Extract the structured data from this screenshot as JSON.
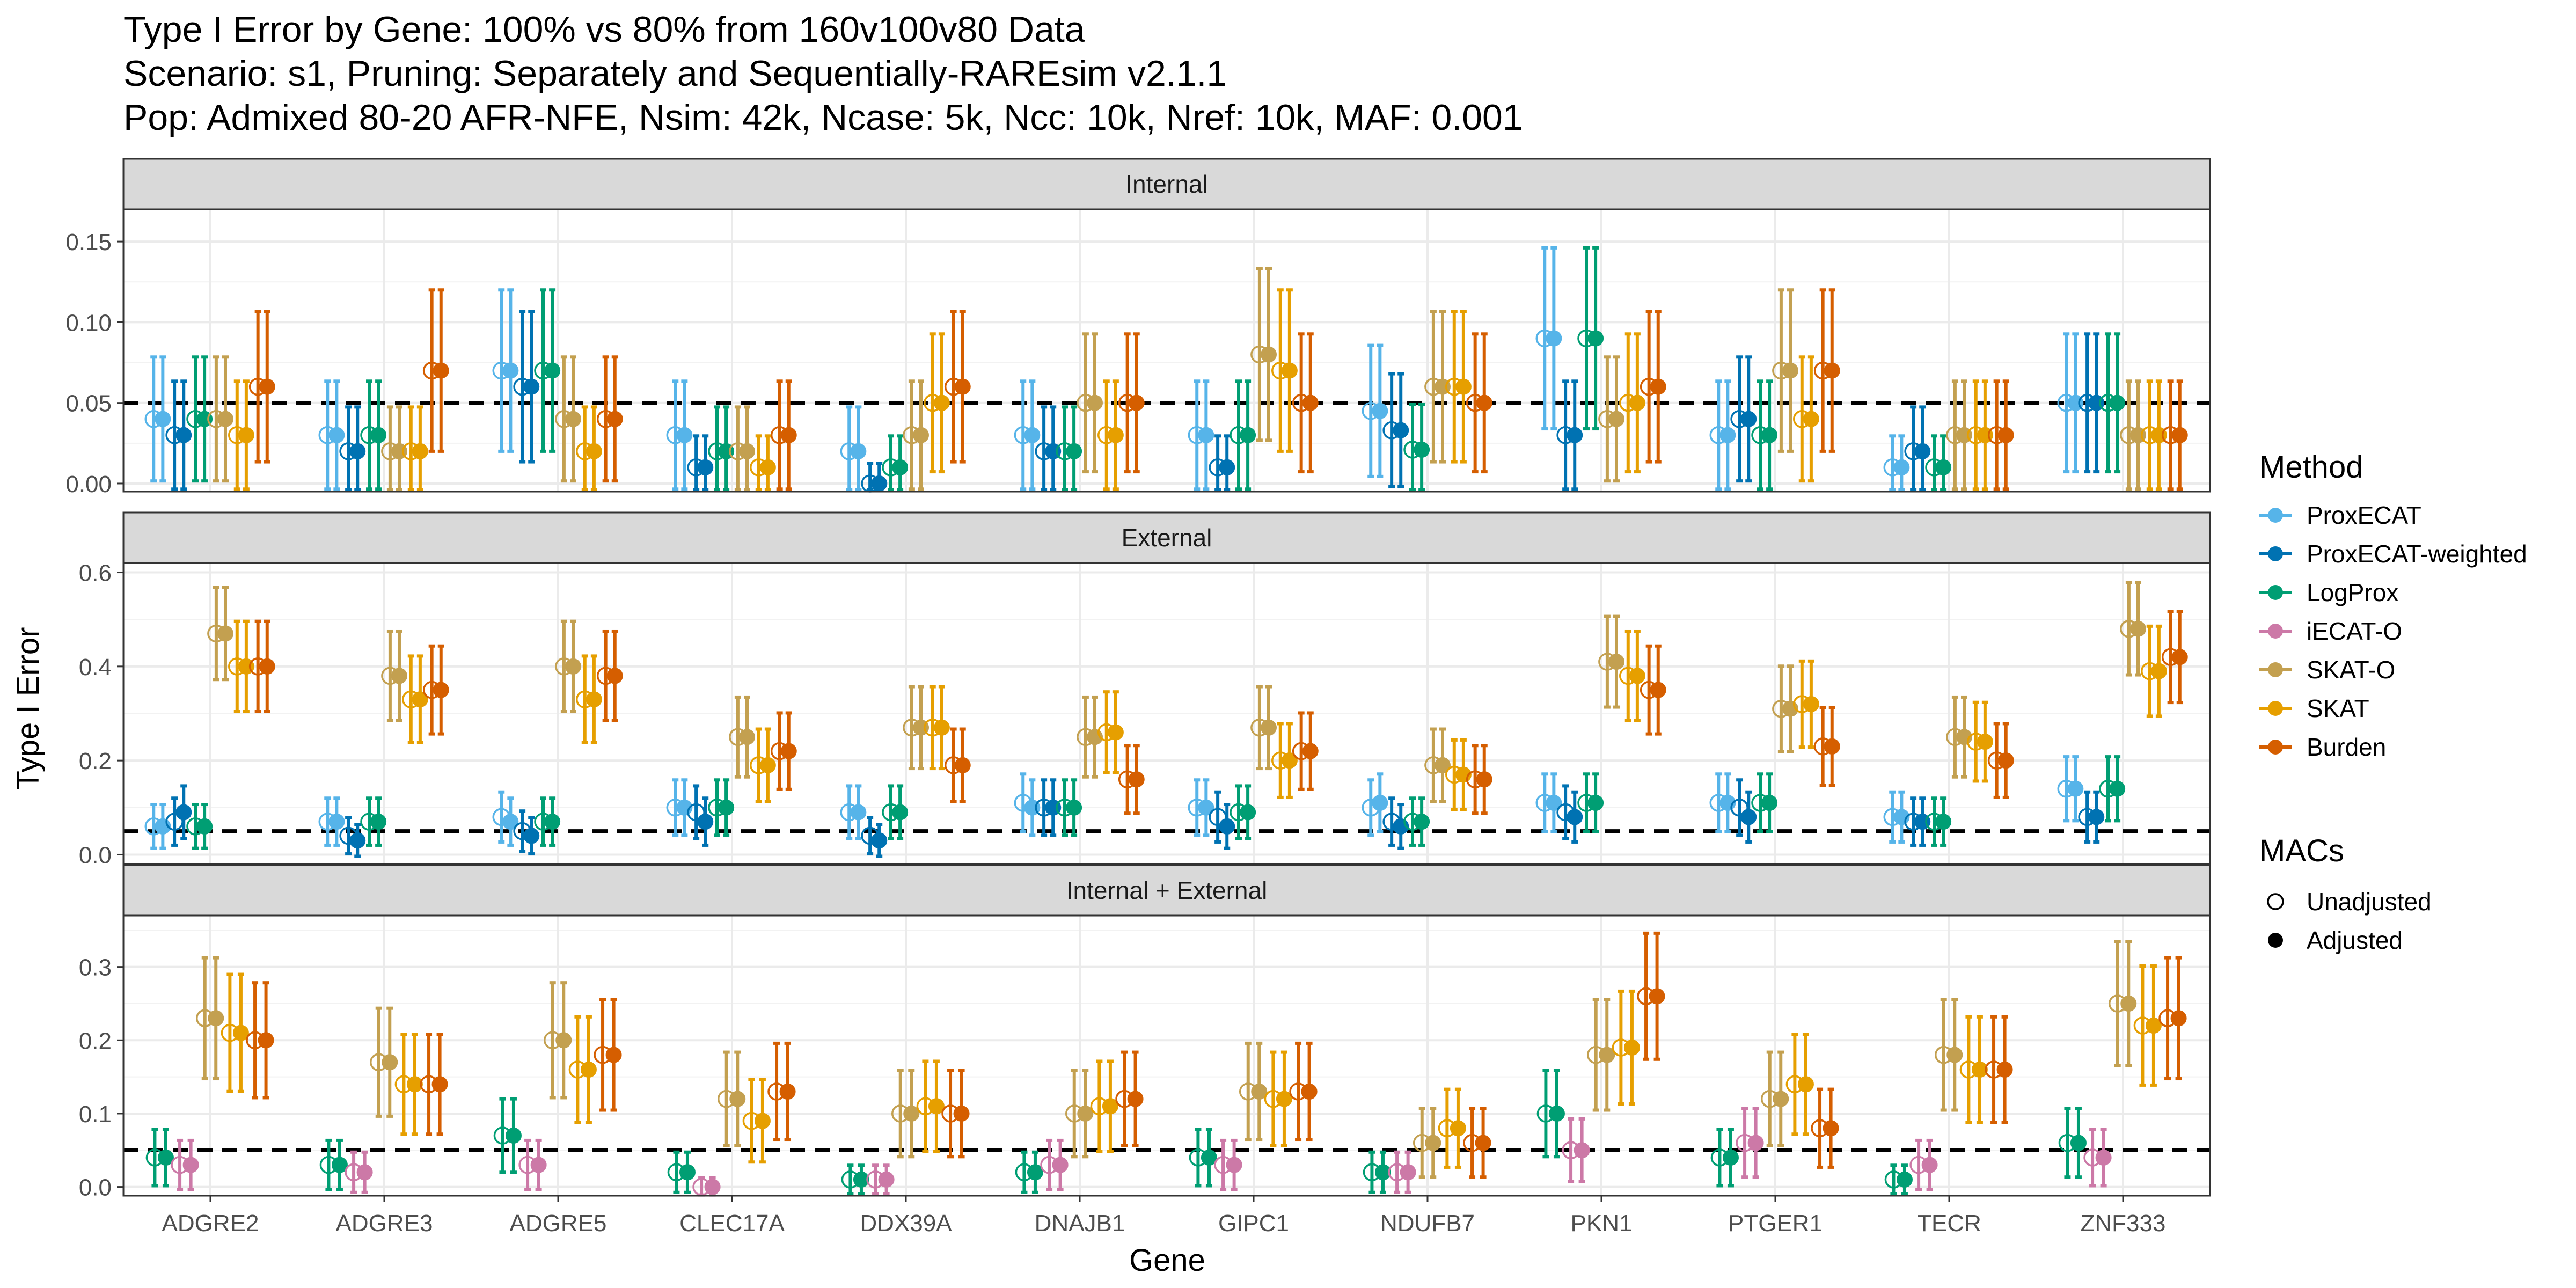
{
  "chart_data": {
    "type": "scatter",
    "subtype": "point-with-errorbars, faceted",
    "title_lines": [
      "Type I Error by Gene: 100% vs 80% from 160v100v80 Data",
      "Scenario: s1, Pruning: Separately and Sequentially-RAREsim v2.1.1",
      "Pop: Admixed 80-20 AFR-NFE, Nsim: 42k, Ncase: 5k, Ncc: 10k, Nref: 10k, MAF: 0.001"
    ],
    "xlabel": "Gene",
    "ylabel": "Type I Error",
    "reference_line": 0.05,
    "genes": [
      "ADGRE2",
      "ADGRE3",
      "ADGRE5",
      "CLEC17A",
      "DDX39A",
      "DNAJB1",
      "GIPC1",
      "NDUFB7",
      "PKN1",
      "PTGER1",
      "TECR",
      "ZNF333"
    ],
    "legend": {
      "method_title": "Method",
      "methods": [
        {
          "name": "ProxECAT",
          "color": "#56B4E9"
        },
        {
          "name": "ProxECAT-weighted",
          "color": "#0072B2"
        },
        {
          "name": "LogProx",
          "color": "#009E73"
        },
        {
          "name": "iECAT-O",
          "color": "#CC79A7"
        },
        {
          "name": "SKAT-O",
          "color": "#C3A050"
        },
        {
          "name": "SKAT",
          "color": "#E69F00"
        },
        {
          "name": "Burden",
          "color": "#D55E00"
        }
      ],
      "macs_title": "MACs",
      "macs": [
        {
          "name": "Unadjusted",
          "shape": "open-circle"
        },
        {
          "name": "Adjusted",
          "shape": "filled-circle"
        }
      ],
      "position": "right"
    },
    "facets": [
      {
        "label": "Internal",
        "ylim": [
          -0.005,
          0.17
        ],
        "yticks": [
          0.0,
          0.05,
          0.1,
          0.15
        ],
        "ytick_labels": [
          "0.00",
          "0.05",
          "0.10",
          "0.15"
        ],
        "methods": [
          "ProxECAT",
          "ProxECAT-weighted",
          "LogProx",
          "SKAT-O",
          "SKAT",
          "Burden"
        ],
        "series": {
          "ProxECAT": {
            "u": [
              0.04,
              0.03,
              0.07,
              0.03,
              0.02,
              0.03,
              0.03,
              0.045,
              0.09,
              0.03,
              0.01,
              0.05
            ],
            "a": [
              0.04,
              0.03,
              0.07,
              0.03,
              0.02,
              0.03,
              0.03,
              0.045,
              0.09,
              0.03,
              0.01,
              0.05
            ]
          },
          "ProxECAT-weighted": {
            "u": [
              0.03,
              0.02,
              0.06,
              0.01,
              0.0,
              0.02,
              0.01,
              0.033,
              0.03,
              0.04,
              0.02,
              0.05
            ],
            "a": [
              0.03,
              0.02,
              0.06,
              0.01,
              0.0,
              0.02,
              0.01,
              0.033,
              0.03,
              0.04,
              0.02,
              0.05
            ]
          },
          "LogProx": {
            "u": [
              0.04,
              0.03,
              0.07,
              0.02,
              0.01,
              0.02,
              0.03,
              0.021,
              0.09,
              0.03,
              0.01,
              0.05
            ],
            "a": [
              0.04,
              0.03,
              0.07,
              0.02,
              0.01,
              0.02,
              0.03,
              0.021,
              0.09,
              0.03,
              0.01,
              0.05
            ]
          },
          "SKAT-O": {
            "u": [
              0.04,
              0.02,
              0.04,
              0.02,
              0.03,
              0.05,
              0.08,
              0.06,
              0.04,
              0.07,
              0.03,
              0.03
            ],
            "a": [
              0.04,
              0.02,
              0.04,
              0.02,
              0.03,
              0.05,
              0.08,
              0.06,
              0.04,
              0.07,
              0.03,
              0.03
            ]
          },
          "SKAT": {
            "u": [
              0.03,
              0.02,
              0.02,
              0.01,
              0.05,
              0.03,
              0.07,
              0.06,
              0.05,
              0.04,
              0.03,
              0.03
            ],
            "a": [
              0.03,
              0.02,
              0.02,
              0.01,
              0.05,
              0.03,
              0.07,
              0.06,
              0.05,
              0.04,
              0.03,
              0.03
            ]
          },
          "Burden": {
            "u": [
              0.06,
              0.07,
              0.04,
              0.03,
              0.06,
              0.05,
              0.05,
              0.05,
              0.06,
              0.07,
              0.03,
              0.03
            ],
            "a": [
              0.06,
              0.07,
              0.04,
              0.03,
              0.06,
              0.05,
              0.05,
              0.05,
              0.06,
              0.07,
              0.03,
              0.03
            ]
          }
        }
      },
      {
        "label": "External",
        "ylim": [
          -0.02,
          0.62
        ],
        "yticks": [
          0.0,
          0.2,
          0.4,
          0.6
        ],
        "ytick_labels": [
          "0.0",
          "0.2",
          "0.4",
          "0.6"
        ],
        "methods": [
          "ProxECAT",
          "ProxECAT-weighted",
          "LogProx",
          "SKAT-O",
          "SKAT",
          "Burden"
        ],
        "series": {
          "ProxECAT": {
            "u": [
              0.06,
              0.07,
              0.08,
              0.1,
              0.09,
              0.11,
              0.1,
              0.1,
              0.11,
              0.11,
              0.08,
              0.14
            ],
            "a": [
              0.06,
              0.07,
              0.07,
              0.1,
              0.09,
              0.1,
              0.1,
              0.11,
              0.11,
              0.11,
              0.08,
              0.14
            ]
          },
          "ProxECAT-weighted": {
            "u": [
              0.07,
              0.04,
              0.05,
              0.09,
              0.04,
              0.1,
              0.08,
              0.07,
              0.09,
              0.1,
              0.07,
              0.08
            ],
            "a": [
              0.09,
              0.03,
              0.04,
              0.07,
              0.03,
              0.1,
              0.06,
              0.06,
              0.08,
              0.08,
              0.07,
              0.08
            ]
          },
          "LogProx": {
            "u": [
              0.06,
              0.07,
              0.07,
              0.1,
              0.09,
              0.1,
              0.09,
              0.07,
              0.11,
              0.11,
              0.07,
              0.14
            ],
            "a": [
              0.06,
              0.07,
              0.07,
              0.1,
              0.09,
              0.1,
              0.09,
              0.07,
              0.11,
              0.11,
              0.07,
              0.14
            ]
          },
          "SKAT-O": {
            "u": [
              0.47,
              0.38,
              0.4,
              0.25,
              0.27,
              0.25,
              0.27,
              0.19,
              0.41,
              0.31,
              0.25,
              0.48
            ],
            "a": [
              0.47,
              0.38,
              0.4,
              0.25,
              0.27,
              0.25,
              0.27,
              0.19,
              0.41,
              0.31,
              0.25,
              0.48
            ]
          },
          "SKAT": {
            "u": [
              0.4,
              0.33,
              0.33,
              0.19,
              0.27,
              0.26,
              0.2,
              0.17,
              0.38,
              0.32,
              0.24,
              0.39
            ],
            "a": [
              0.4,
              0.33,
              0.33,
              0.19,
              0.27,
              0.26,
              0.2,
              0.17,
              0.38,
              0.32,
              0.24,
              0.39
            ]
          },
          "Burden": {
            "u": [
              0.4,
              0.35,
              0.38,
              0.22,
              0.19,
              0.16,
              0.22,
              0.16,
              0.35,
              0.23,
              0.2,
              0.42
            ],
            "a": [
              0.4,
              0.35,
              0.38,
              0.22,
              0.19,
              0.16,
              0.22,
              0.16,
              0.35,
              0.23,
              0.2,
              0.42
            ]
          }
        }
      },
      {
        "label": "Internal + External",
        "ylim": [
          -0.012,
          0.37
        ],
        "yticks": [
          0.0,
          0.1,
          0.2,
          0.3
        ],
        "ytick_labels": [
          "0.0",
          "0.1",
          "0.2",
          "0.3"
        ],
        "methods": [
          "LogProx",
          "iECAT-O",
          "SKAT-O",
          "SKAT",
          "Burden"
        ],
        "series": {
          "LogProx": {
            "u": [
              0.04,
              0.03,
              0.07,
              0.02,
              0.01,
              0.02,
              0.04,
              0.02,
              0.1,
              0.04,
              0.01,
              0.06
            ],
            "a": [
              0.04,
              0.03,
              0.07,
              0.02,
              0.01,
              0.02,
              0.04,
              0.02,
              0.1,
              0.04,
              0.01,
              0.06
            ]
          },
          "iECAT-O": {
            "u": [
              0.03,
              0.02,
              0.03,
              0.0,
              0.01,
              0.03,
              0.03,
              0.02,
              0.05,
              0.06,
              0.03,
              0.04
            ],
            "a": [
              0.03,
              0.02,
              0.03,
              0.0,
              0.01,
              0.03,
              0.03,
              0.02,
              0.05,
              0.06,
              0.03,
              0.04
            ]
          },
          "SKAT-O": {
            "u": [
              0.23,
              0.17,
              0.2,
              0.12,
              0.1,
              0.1,
              0.13,
              0.06,
              0.18,
              0.12,
              0.18,
              0.25
            ],
            "a": [
              0.23,
              0.17,
              0.2,
              0.12,
              0.1,
              0.1,
              0.13,
              0.06,
              0.18,
              0.12,
              0.18,
              0.25
            ]
          },
          "SKAT": {
            "u": [
              0.21,
              0.14,
              0.16,
              0.09,
              0.11,
              0.11,
              0.12,
              0.08,
              0.19,
              0.14,
              0.16,
              0.22
            ],
            "a": [
              0.21,
              0.14,
              0.16,
              0.09,
              0.11,
              0.11,
              0.12,
              0.08,
              0.19,
              0.14,
              0.16,
              0.22
            ]
          },
          "Burden": {
            "u": [
              0.2,
              0.14,
              0.18,
              0.13,
              0.1,
              0.12,
              0.13,
              0.06,
              0.26,
              0.08,
              0.16,
              0.23
            ],
            "a": [
              0.2,
              0.14,
              0.18,
              0.13,
              0.1,
              0.12,
              0.13,
              0.06,
              0.26,
              0.08,
              0.16,
              0.23
            ]
          }
        }
      }
    ]
  }
}
